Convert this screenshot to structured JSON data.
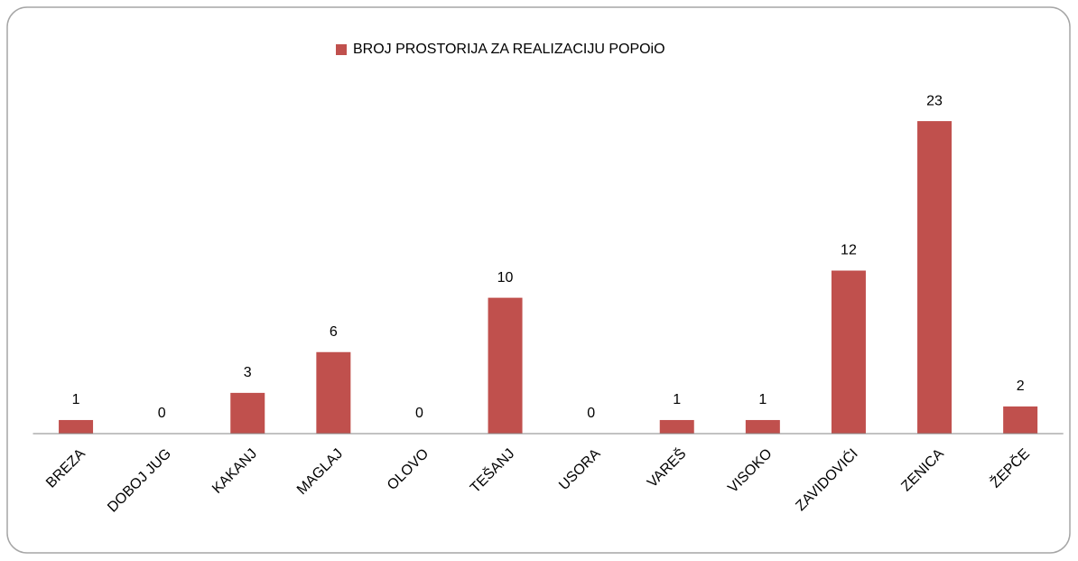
{
  "chart_data": {
    "type": "bar",
    "categories": [
      "BREZA",
      "DOBOJ JUG",
      "KAKANJ",
      "MAGLAJ",
      "OLOVO",
      "TEŠANJ",
      "USORA",
      "VAREŠ",
      "VISOKO",
      "ZAVIDOVIĆI",
      "ZENICA",
      "ŽEPČE"
    ],
    "series": [
      {
        "name": "BROJ PROSTORIJA ZA REALIZACIJU POPOiO",
        "color": "#c0504d",
        "values": [
          1,
          0,
          3,
          6,
          0,
          10,
          0,
          1,
          1,
          12,
          23,
          2
        ]
      }
    ],
    "ylim": [
      0,
      25
    ],
    "legend": "top"
  }
}
